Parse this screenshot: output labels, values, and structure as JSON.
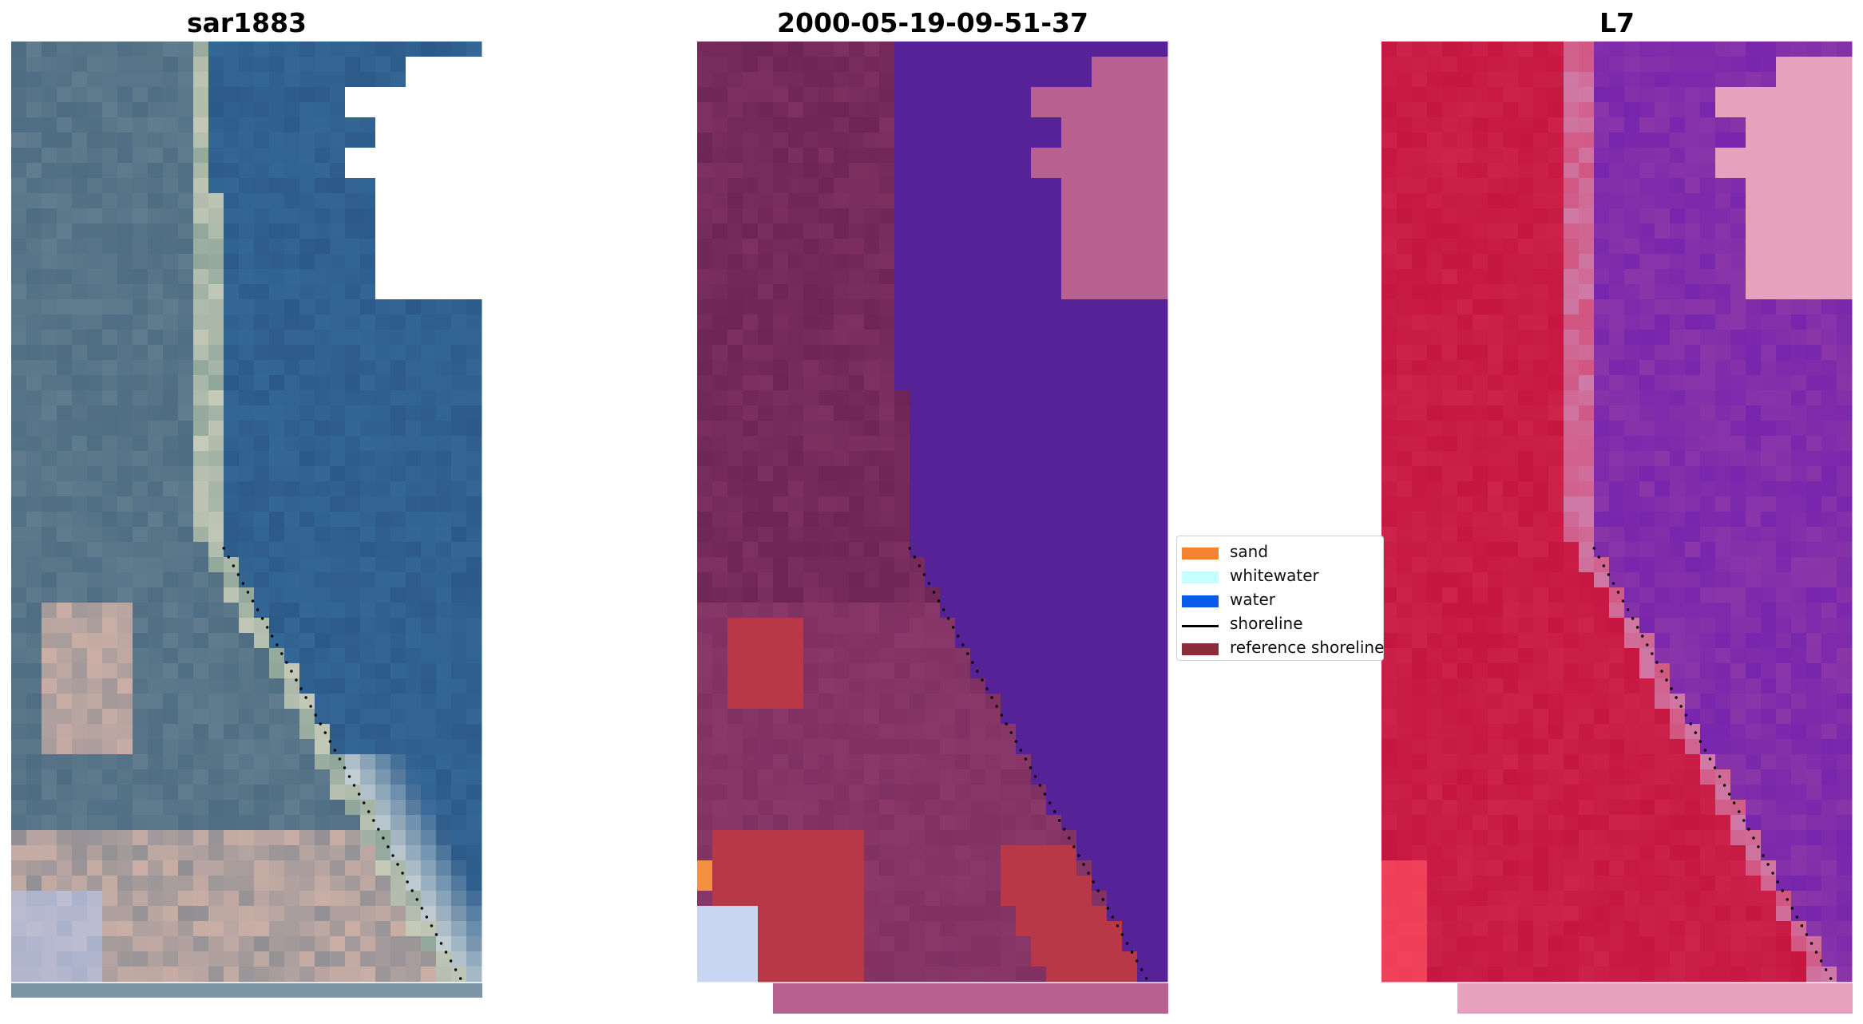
{
  "panels": [
    {
      "title": "sar1883",
      "scene": "rgb",
      "colors": {
        "base": "#2e567a",
        "water": "#2c5a88",
        "land": "#4e6c82",
        "bright": "#e9eae4",
        "pink": "#d6b4a8",
        "strip": "#7c95a6"
      }
    },
    {
      "title": "2000-05-19-09-51-37",
      "scene": "classified",
      "colors": {
        "land": "#6e2456",
        "landLight": "#8a3a6a",
        "water": "#552298",
        "nodata": "#b8608f",
        "sand": "#b83848",
        "orange": "#f59042",
        "white": "#c9d6f2"
      }
    },
    {
      "title": "L7",
      "scene": "falsecolor",
      "colors": {
        "land": "#c51641",
        "landLight": "#d43058",
        "water": "#8b36a8",
        "waterDark": "#6a1ab0",
        "nodata": "#e6a2bc",
        "edge": "#cf7ba8",
        "redlight": "#ff5060"
      }
    }
  ],
  "legend": {
    "items": [
      {
        "label": "sand",
        "type": "patch",
        "color": "#f58231"
      },
      {
        "label": "whitewater",
        "type": "patch",
        "color": "#c8ffff"
      },
      {
        "label": "water",
        "type": "patch",
        "color": "#0a5aec"
      },
      {
        "label": "shoreline",
        "type": "line",
        "color": "#000000"
      },
      {
        "label": "reference shoreline",
        "type": "patch",
        "color": "#8b2b3a"
      }
    ]
  }
}
